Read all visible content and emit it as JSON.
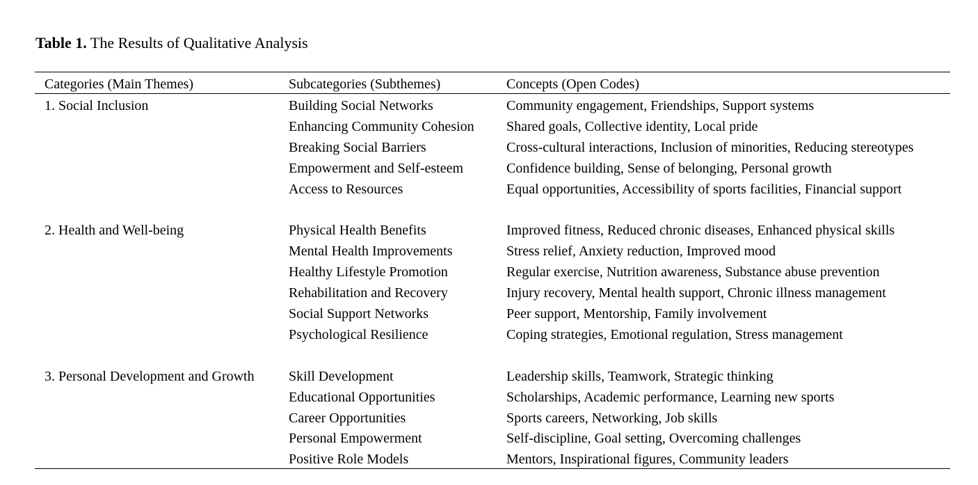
{
  "title": {
    "label": "Table 1.",
    "text": "The Results of Qualitative Analysis"
  },
  "table": {
    "headers": [
      "Categories (Main Themes)",
      "Subcategories (Subthemes)",
      "Concepts (Open Codes)"
    ],
    "groups": [
      {
        "category": "1. Social Inclusion",
        "rows": [
          [
            "Building Social Networks",
            "Community engagement, Friendships, Support systems"
          ],
          [
            "Enhancing Community Cohesion",
            "Shared goals, Collective identity, Local pride"
          ],
          [
            "Breaking Social Barriers",
            "Cross-cultural interactions, Inclusion of minorities, Reducing stereotypes"
          ],
          [
            "Empowerment and Self-esteem",
            "Confidence building, Sense of belonging, Personal growth"
          ],
          [
            "Access to Resources",
            "Equal opportunities, Accessibility of sports facilities, Financial support"
          ]
        ]
      },
      {
        "category": "2. Health and Well-being",
        "rows": [
          [
            "Physical Health Benefits",
            "Improved fitness, Reduced chronic diseases, Enhanced physical skills"
          ],
          [
            "Mental Health Improvements",
            "Stress relief, Anxiety reduction, Improved mood"
          ],
          [
            "Healthy Lifestyle Promotion",
            "Regular exercise, Nutrition awareness, Substance abuse prevention"
          ],
          [
            "Rehabilitation and Recovery",
            "Injury recovery, Mental health support, Chronic illness management"
          ],
          [
            "Social Support Networks",
            "Peer support, Mentorship, Family involvement"
          ],
          [
            "Psychological Resilience",
            "Coping strategies, Emotional regulation, Stress management"
          ]
        ]
      },
      {
        "category": "3. Personal Development and Growth",
        "rows": [
          [
            "Skill Development",
            "Leadership skills, Teamwork, Strategic thinking"
          ],
          [
            "Educational Opportunities",
            "Scholarships, Academic performance, Learning new sports"
          ],
          [
            "Career Opportunities",
            "Sports careers, Networking, Job skills"
          ],
          [
            "Personal Empowerment",
            "Self-discipline, Goal setting, Overcoming challenges"
          ],
          [
            "Positive Role Models",
            "Mentors, Inspirational figures, Community leaders"
          ]
        ]
      }
    ]
  }
}
